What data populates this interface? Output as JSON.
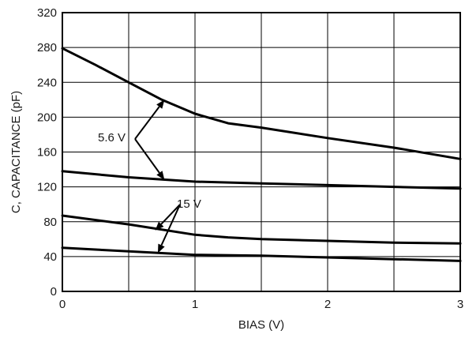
{
  "chart_data": {
    "type": "line",
    "title": "",
    "xlabel": "BIAS (V)",
    "ylabel": "C, CAPACITANCE (pF)",
    "xlim": [
      0,
      3
    ],
    "ylim": [
      0,
      320
    ],
    "grid": true,
    "x_ticks": [
      "0",
      "1",
      "2",
      "3"
    ],
    "y_ticks": [
      "0",
      "40",
      "80",
      "120",
      "160",
      "200",
      "240",
      "280",
      "320"
    ],
    "series": [
      {
        "x": [
          0,
          0.25,
          0.5,
          0.75,
          1.0,
          1.25,
          1.5,
          2.0,
          2.5,
          3.0
        ],
        "values": [
          279,
          260,
          240,
          220,
          204,
          193,
          188,
          176,
          165,
          152
        ]
      },
      {
        "x": [
          0,
          0.5,
          1.0,
          1.5,
          2.0,
          2.5,
          3.0
        ],
        "values": [
          138,
          131,
          126,
          124,
          122,
          120,
          118
        ]
      },
      {
        "x": [
          0,
          0.5,
          1.0,
          1.25,
          1.5,
          2.0,
          2.5,
          3.0
        ],
        "values": [
          87,
          77,
          65,
          62,
          60,
          58,
          56,
          55
        ]
      },
      {
        "x": [
          0,
          0.5,
          1.0,
          1.5,
          2.0,
          2.5,
          3.0
        ],
        "values": [
          50,
          46,
          42,
          41,
          39,
          37,
          35
        ]
      }
    ],
    "annotations": [
      {
        "label": "5.6 V",
        "targets": [
          [
            0.77,
            220
          ],
          [
            0.77,
            128
          ]
        ]
      },
      {
        "label": "15 V",
        "targets": [
          [
            0.7,
            70
          ],
          [
            0.72,
            44
          ]
        ]
      }
    ]
  }
}
